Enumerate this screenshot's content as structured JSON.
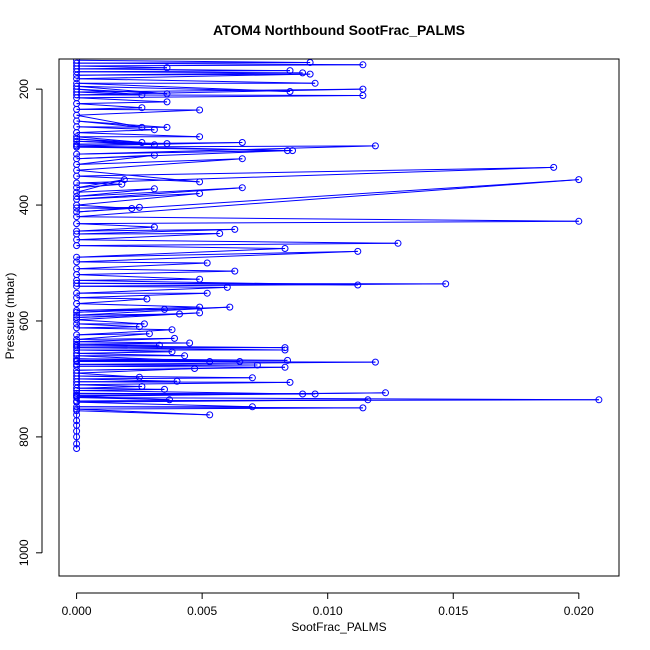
{
  "chart_data": {
    "type": "line",
    "title": "ATOM4 Northbound SootFrac_PALMS",
    "xlabel": "SootFrac_PALMS",
    "ylabel": "Pressure (mbar)",
    "xlim": [
      -0.0007,
      0.0216
    ],
    "ylim": [
      1040,
      148
    ],
    "y_reversed": true,
    "x_ticks": [
      "0.000",
      "0.005",
      "0.010",
      "0.015",
      "0.020"
    ],
    "x_tick_values": [
      0,
      0.005,
      0.01,
      0.015,
      0.02
    ],
    "y_ticks": [
      "200",
      "400",
      "600",
      "800",
      "1000"
    ],
    "y_tick_values": [
      200,
      400,
      600,
      800,
      1000
    ],
    "grid": false,
    "series_color": "#0000ff",
    "marker": "open-circle",
    "series": [
      {
        "values": [
          [
            0,
            820
          ],
          [
            0,
            812
          ],
          [
            0,
            800
          ],
          [
            0,
            790
          ],
          [
            0,
            780
          ],
          [
            0,
            772
          ],
          [
            0,
            762
          ],
          [
            0,
            755
          ],
          [
            0.0053,
            762
          ],
          [
            0,
            752
          ],
          [
            0.0114,
            750
          ],
          [
            0,
            748
          ],
          [
            0.007,
            748
          ],
          [
            0,
            740
          ],
          [
            0.0116,
            736
          ],
          [
            0,
            738
          ],
          [
            0.0208,
            736
          ],
          [
            0,
            732
          ],
          [
            0.0037,
            736
          ],
          [
            0,
            730
          ],
          [
            0.0123,
            724
          ],
          [
            0,
            728
          ],
          [
            0.0095,
            726
          ],
          [
            0,
            725
          ],
          [
            0.009,
            726
          ],
          [
            0,
            720
          ],
          [
            0.0035,
            718
          ],
          [
            0,
            716
          ],
          [
            0.0026,
            713
          ],
          [
            0,
            710
          ],
          [
            0.0085,
            706
          ],
          [
            0,
            705
          ],
          [
            0.004,
            704
          ],
          [
            0,
            700
          ],
          [
            0.007,
            698
          ],
          [
            0,
            695
          ],
          [
            0.0025,
            697
          ],
          [
            0,
            690
          ],
          [
            0.0047,
            682
          ],
          [
            0,
            685
          ],
          [
            0.0083,
            680
          ],
          [
            0,
            678
          ],
          [
            0.0072,
            676
          ],
          [
            0,
            675
          ],
          [
            0.0119,
            671
          ],
          [
            0,
            670
          ],
          [
            0.0065,
            670
          ],
          [
            0,
            668
          ],
          [
            0.0084,
            668
          ],
          [
            0,
            665
          ],
          [
            0.0053,
            670
          ],
          [
            0,
            660
          ],
          [
            0.0043,
            660
          ],
          [
            0,
            656
          ],
          [
            0.0038,
            653
          ],
          [
            0,
            650
          ],
          [
            0.0083,
            650
          ],
          [
            0,
            646
          ],
          [
            0.0083,
            646
          ],
          [
            0,
            643
          ],
          [
            0.0033,
            642
          ],
          [
            0,
            640
          ],
          [
            0.0045,
            638
          ],
          [
            0,
            636
          ],
          [
            0.0039,
            630
          ],
          [
            0,
            632
          ],
          [
            0.0029,
            622
          ],
          [
            0,
            624
          ],
          [
            0.0038,
            615
          ],
          [
            0,
            612
          ],
          [
            0.0025,
            610
          ],
          [
            0,
            605
          ],
          [
            0.0027,
            605
          ],
          [
            0,
            598
          ],
          [
            0.0049,
            586
          ],
          [
            0,
            594
          ],
          [
            0.0041,
            588
          ],
          [
            0,
            590
          ],
          [
            0.0061,
            576
          ],
          [
            0,
            585
          ],
          [
            0.0035,
            580
          ],
          [
            0,
            582
          ],
          [
            0.0049,
            576
          ],
          [
            0,
            570
          ],
          [
            0.0028,
            562
          ],
          [
            0,
            560
          ],
          [
            0.0052,
            552
          ],
          [
            0,
            552
          ],
          [
            0.006,
            542
          ],
          [
            0,
            540
          ],
          [
            0.0147,
            536
          ],
          [
            0,
            535
          ],
          [
            0.0112,
            538
          ],
          [
            0,
            530
          ],
          [
            0.0049,
            528
          ],
          [
            0,
            520
          ],
          [
            0.0063,
            514
          ],
          [
            0,
            510
          ],
          [
            0.0052,
            500
          ],
          [
            0,
            498
          ],
          [
            0.0112,
            480
          ],
          [
            0,
            490
          ],
          [
            0.0083,
            475
          ],
          [
            0,
            470
          ],
          [
            0.0128,
            466
          ],
          [
            0,
            460
          ],
          [
            0.0057,
            449
          ],
          [
            0,
            450
          ],
          [
            0.0063,
            442
          ],
          [
            0,
            445
          ],
          [
            0.0031,
            438
          ],
          [
            0,
            432
          ],
          [
            0.02,
            428
          ],
          [
            0,
            420
          ],
          [
            0.02,
            356
          ],
          [
            0,
            412
          ],
          [
            0.0025,
            404
          ],
          [
            0,
            405
          ],
          [
            0.0022,
            406
          ],
          [
            0,
            400
          ],
          [
            0.0049,
            380
          ],
          [
            0,
            390
          ],
          [
            0.0066,
            370
          ],
          [
            0,
            385
          ],
          [
            0.0031,
            372
          ],
          [
            0,
            378
          ],
          [
            0.0019,
            356
          ],
          [
            0,
            370
          ],
          [
            0.0018,
            364
          ],
          [
            0,
            362
          ],
          [
            0.019,
            335
          ],
          [
            0,
            350
          ],
          [
            0.0049,
            360
          ],
          [
            0,
            340
          ],
          [
            0.0066,
            320
          ],
          [
            0,
            330
          ],
          [
            0.0031,
            314
          ],
          [
            0,
            320
          ],
          [
            0.0084,
            306
          ],
          [
            0,
            312
          ],
          [
            0.0119,
            298
          ],
          [
            0,
            300
          ],
          [
            0.0086,
            306
          ],
          [
            0,
            298
          ],
          [
            0.0066,
            292
          ],
          [
            0,
            295
          ],
          [
            0.0036,
            294
          ],
          [
            0,
            290
          ],
          [
            0.0031,
            296
          ],
          [
            0,
            286
          ],
          [
            0.0026,
            292
          ],
          [
            0,
            282
          ],
          [
            0.0049,
            282
          ],
          [
            0,
            275
          ],
          [
            0.0031,
            270
          ],
          [
            0,
            265
          ],
          [
            0.0036,
            266
          ],
          [
            0,
            255
          ],
          [
            0.0026,
            266
          ],
          [
            0,
            245
          ],
          [
            0.0049,
            236
          ],
          [
            0,
            235
          ],
          [
            0.0026,
            232
          ],
          [
            0,
            225
          ],
          [
            0.0036,
            222
          ],
          [
            0,
            215
          ],
          [
            0.0114,
            211
          ],
          [
            0,
            210
          ],
          [
            0.0114,
            200
          ],
          [
            0,
            205
          ],
          [
            0.0026,
            210
          ],
          [
            0,
            200
          ],
          [
            0.0036,
            208
          ],
          [
            0,
            195
          ],
          [
            0.0085,
            204
          ],
          [
            0,
            190
          ],
          [
            0.0095,
            190
          ],
          [
            0,
            182
          ],
          [
            0.0093,
            174
          ],
          [
            0,
            176
          ],
          [
            0.009,
            172
          ],
          [
            0,
            170
          ],
          [
            0.0085,
            168
          ],
          [
            0,
            165
          ],
          [
            0.0036,
            163
          ],
          [
            0,
            160
          ],
          [
            0.0114,
            158
          ],
          [
            0,
            155
          ],
          [
            0.0093,
            154
          ],
          [
            0,
            150
          ]
        ]
      }
    ]
  }
}
